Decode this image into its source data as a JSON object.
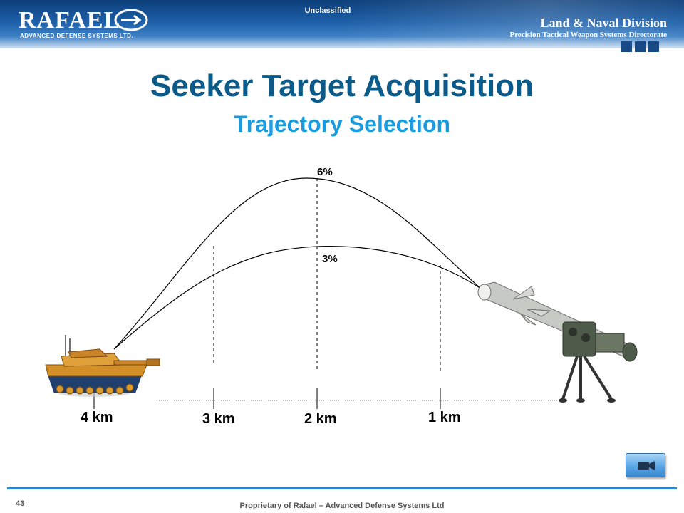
{
  "header": {
    "logo_text": "RAFAEL",
    "logo_subtext": "ADVANCED DEFENSE SYSTEMS LTD.",
    "classification": "Unclassified",
    "division": "Land & Naval Division",
    "directorate": "Precision Tactical Weapon Systems Directorate"
  },
  "slide": {
    "title": "Seeker Target Acquisition",
    "subtitle": "Trajectory Selection"
  },
  "diagram": {
    "distance_labels": [
      "4 km",
      "3 km",
      "2 km",
      "1 km"
    ],
    "trajectories": [
      {
        "label": "6%"
      },
      {
        "label": "3%"
      }
    ],
    "icons": [
      "tank-icon",
      "missile-launcher-icon"
    ]
  },
  "controls": {
    "video_button_icon": "video-camera-icon"
  },
  "footer": {
    "page_number": "43",
    "text": "Proprietary of Rafael – Advanced Defense Systems Ltd"
  },
  "colors": {
    "title": "#0a5a8a",
    "subtitle": "#1a9be0",
    "header": "#1d5fa8",
    "footer_rule": "#2a86c8"
  }
}
